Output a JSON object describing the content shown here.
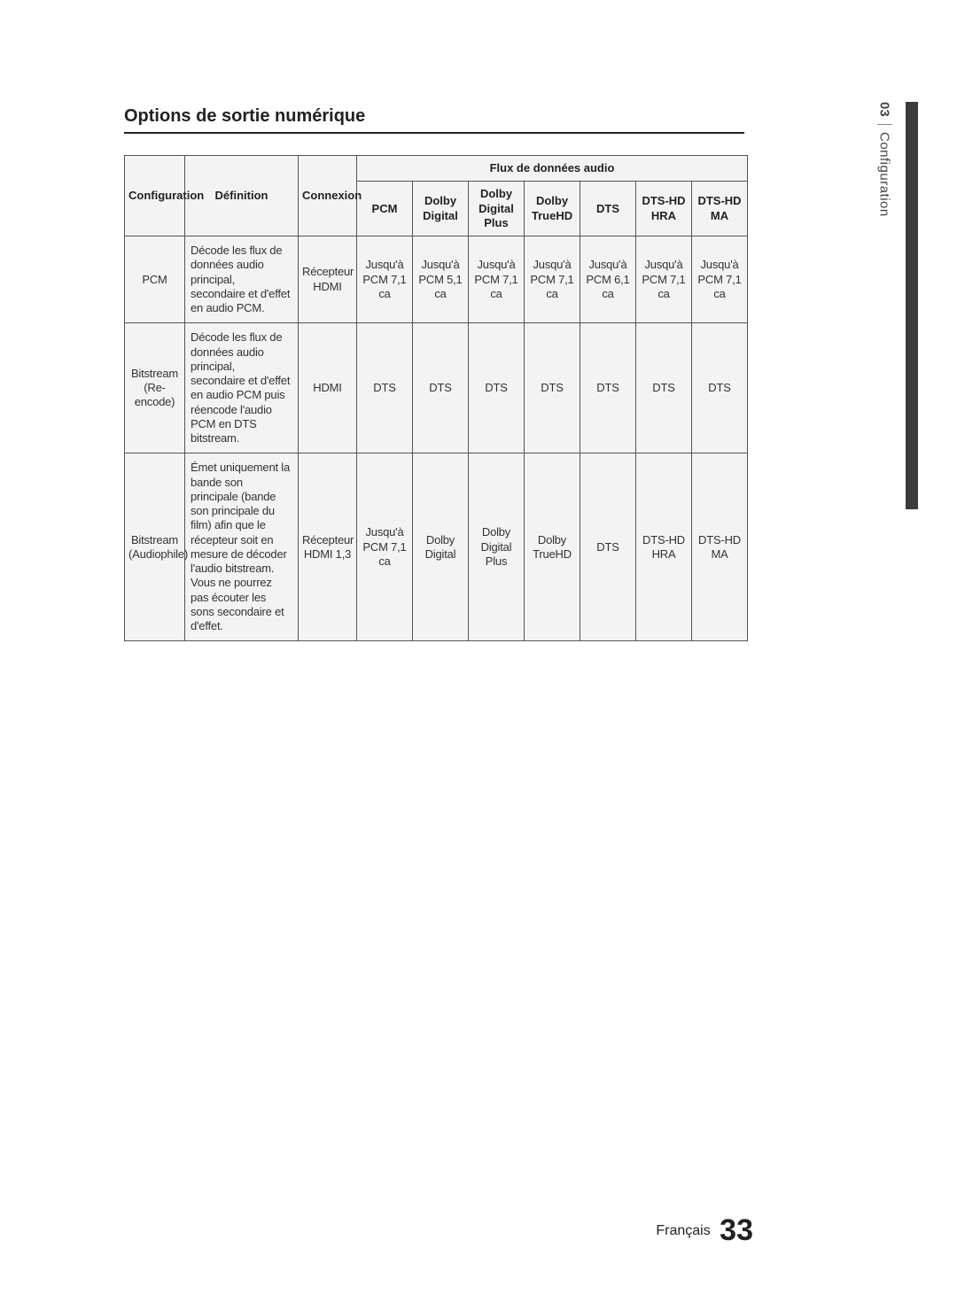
{
  "side": {
    "chapter_num": "03",
    "chapter_label": "Configuration"
  },
  "title": "Options de sortie numérique",
  "headers": {
    "config": "Configuration",
    "definition": "Définition",
    "connexion": "Connexion",
    "flux": "Flux de données audio",
    "cols": [
      "PCM",
      "Dolby Digital",
      "Dolby Digital Plus",
      "Dolby TrueHD",
      "DTS",
      "DTS-HD HRA",
      "DTS-HD MA"
    ]
  },
  "rows": [
    {
      "config": "PCM",
      "definition": "Décode les flux de données audio principal, secondaire et d'effet en audio PCM.",
      "connexion": "Récepteur HDMI",
      "cells": [
        "Jusqu'à PCM 7,1 ca",
        "Jusqu'à PCM 5,1 ca",
        "Jusqu'à PCM 7,1 ca",
        "Jusqu'à PCM 7,1 ca",
        "Jusqu'à PCM 6,1 ca",
        "Jusqu'à PCM 7,1 ca",
        "Jusqu'à PCM 7,1 ca"
      ]
    },
    {
      "config": "Bitstream (Re-encode)",
      "definition": "Décode les flux de données audio principal, secondaire et d'effet en audio PCM puis réencode l'audio PCM en DTS bitstream.",
      "connexion": "HDMI",
      "cells": [
        "DTS",
        "DTS",
        "DTS",
        "DTS",
        "DTS",
        "DTS",
        "DTS"
      ]
    },
    {
      "config": "Bitstream (Audiophile)",
      "definition": "Émet uniquement la bande son principale (bande son principale du film) afin que le récepteur soit en mesure de décoder l'audio bitstream. Vous ne pourrez pas écouter les sons secondaire et d'effet.",
      "connexion": "Récepteur HDMI 1,3",
      "cells": [
        "Jusqu'à PCM 7,1 ca",
        "Dolby Digital",
        "Dolby Digital Plus",
        "Dolby TrueHD",
        "DTS",
        "DTS-HD HRA",
        "DTS-HD MA"
      ]
    }
  ],
  "footer": {
    "lang": "Français",
    "page": "33"
  },
  "colors": {
    "header_bg": "#f3f3f3",
    "border": "#555555",
    "text": "#333333",
    "sidebar": "#3b3b3b"
  }
}
